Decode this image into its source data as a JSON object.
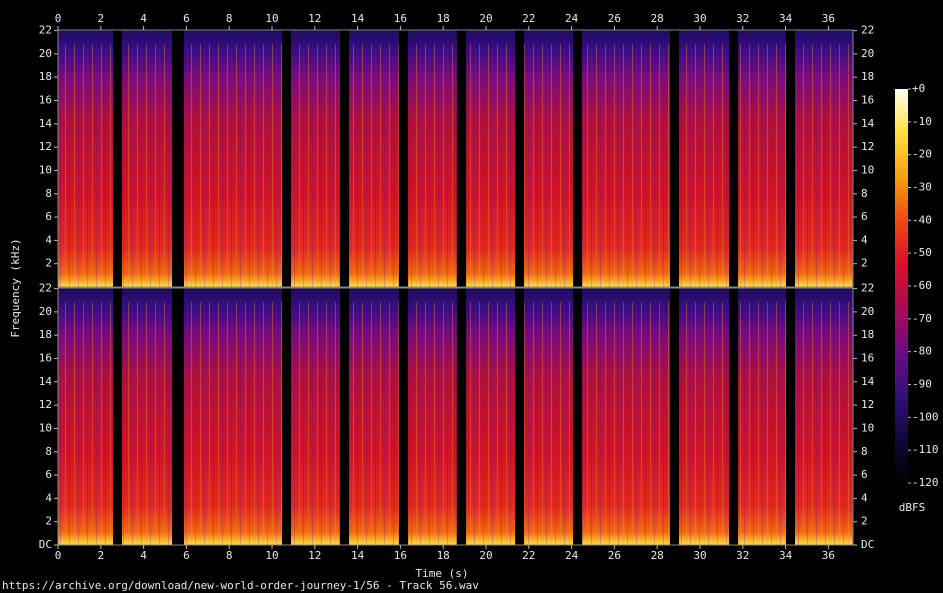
{
  "chart_data": {
    "type": "spectrogram",
    "xlabel": "Time (s)",
    "ylabel": "Frequency (kHz)",
    "xlim": [
      0,
      37.15
    ],
    "xticks": [
      0,
      2,
      4,
      6,
      8,
      10,
      12,
      14,
      16,
      18,
      20,
      22,
      24,
      26,
      28,
      30,
      32,
      34,
      36
    ],
    "panels": [
      {
        "ylim": [
          0,
          22.05
        ],
        "yticks": [
          2,
          4,
          6,
          8,
          10,
          12,
          14,
          16,
          18,
          20,
          22
        ]
      },
      {
        "ylim": [
          0,
          22.05
        ],
        "yticks": [
          {
            "value": 0,
            "label": "DC"
          },
          2,
          4,
          6,
          8,
          10,
          12,
          14,
          16,
          18,
          20,
          22
        ]
      }
    ],
    "segments": [
      [
        0,
        2.57
      ],
      [
        2.99,
        5.33
      ],
      [
        5.89,
        10.47
      ],
      [
        10.89,
        13.18
      ],
      [
        13.6,
        15.93
      ],
      [
        16.36,
        18.64
      ],
      [
        19.07,
        21.36
      ],
      [
        21.78,
        24.07
      ],
      [
        24.49,
        28.6
      ],
      [
        29.02,
        31.36
      ],
      [
        31.78,
        34.02
      ],
      [
        34.44,
        37.15
      ]
    ],
    "colormap": [
      "#ffffe8",
      "#ffe040",
      "#f8a010",
      "#ee4a14",
      "#d8102a",
      "#a80c52",
      "#6a0c86",
      "#32107a",
      "#0c0a38",
      "#000000"
    ],
    "colorbar": {
      "label": "dBFS",
      "lim": [
        -120,
        0
      ],
      "ticks": [
        {
          "value": 0,
          "label": "+0"
        },
        -10,
        -20,
        -30,
        -40,
        -50,
        -60,
        -70,
        -80,
        -90,
        -100,
        -110,
        -120
      ]
    }
  },
  "source_url": "https://archive.org/download/new-world-order-journey-1/56 - Track 56.wav"
}
